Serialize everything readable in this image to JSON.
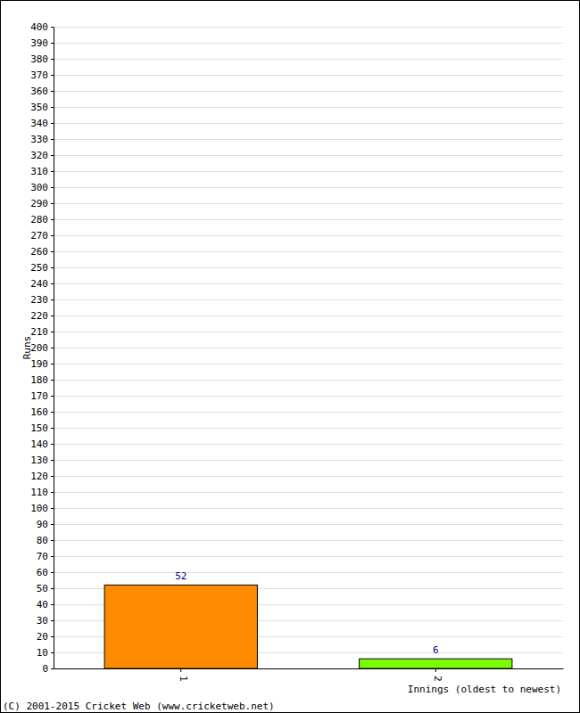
{
  "chart_data": {
    "type": "bar",
    "categories": [
      "1",
      "2"
    ],
    "values": [
      52,
      6
    ],
    "colors": [
      "#ff8c00",
      "#7cfc00"
    ],
    "ylim": [
      0,
      400
    ],
    "yticks": [
      0,
      10,
      20,
      30,
      40,
      50,
      60,
      70,
      80,
      90,
      100,
      110,
      120,
      130,
      140,
      150,
      160,
      170,
      180,
      190,
      200,
      210,
      220,
      230,
      240,
      250,
      260,
      270,
      280,
      290,
      300,
      310,
      320,
      330,
      340,
      350,
      360,
      370,
      380,
      390,
      400
    ],
    "grid": true,
    "data_labels": true,
    "y_label": "Runs",
    "x_label": "Innings (oldest to newest)",
    "annotations": [
      "(C) 2001-2015 Cricket Web (www.cricketweb.net)"
    ]
  }
}
